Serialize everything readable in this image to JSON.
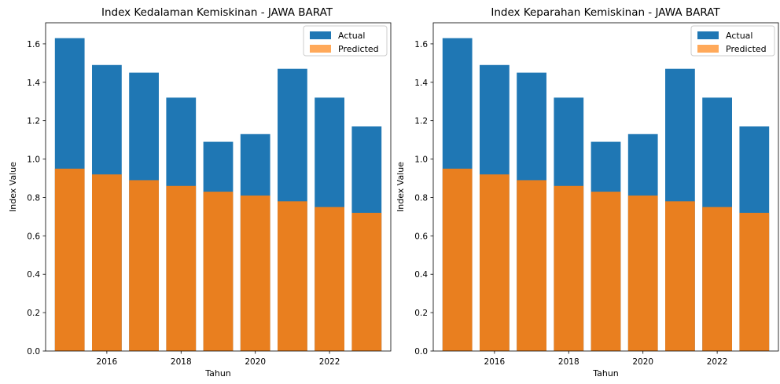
{
  "chart_data": [
    {
      "type": "bar",
      "title": "Index Kedalaman Kemiskinan - JAWA BARAT",
      "xlabel": "Tahun",
      "ylabel": "Index Value",
      "x": [
        2015,
        2016,
        2017,
        2018,
        2019,
        2020,
        2021,
        2022,
        2023
      ],
      "xticks": [
        2016,
        2018,
        2020,
        2022
      ],
      "yticks": [
        "0.0",
        "0.2",
        "0.4",
        "0.6",
        "0.8",
        "1.0",
        "1.2",
        "1.4",
        "1.6"
      ],
      "xlim": [
        2014.35,
        2023.65
      ],
      "ylim": [
        0,
        1.71
      ],
      "grid": false,
      "legend_position": "top-right",
      "series": [
        {
          "name": "Actual",
          "color": "#1f77b4",
          "values": [
            1.63,
            1.49,
            1.45,
            1.32,
            1.09,
            1.13,
            1.47,
            1.32,
            1.17
          ]
        },
        {
          "name": "Predicted",
          "color": "#ff7f0e",
          "legend_color": "#ffa95a",
          "values": [
            0.95,
            0.92,
            0.89,
            0.86,
            0.83,
            0.81,
            0.78,
            0.75,
            0.72
          ]
        }
      ]
    },
    {
      "type": "bar",
      "title": "Index Keparahan Kemiskinan - JAWA BARAT",
      "xlabel": "Tahun",
      "ylabel": "Index Value",
      "x": [
        2015,
        2016,
        2017,
        2018,
        2019,
        2020,
        2021,
        2022,
        2023
      ],
      "xticks": [
        2016,
        2018,
        2020,
        2022
      ],
      "yticks": [
        "0.0",
        "0.2",
        "0.4",
        "0.6",
        "0.8",
        "1.0",
        "1.2",
        "1.4",
        "1.6"
      ],
      "xlim": [
        2014.35,
        2023.65
      ],
      "ylim": [
        0,
        1.71
      ],
      "grid": false,
      "legend_position": "top-right",
      "series": [
        {
          "name": "Actual",
          "color": "#1f77b4",
          "values": [
            1.63,
            1.49,
            1.45,
            1.32,
            1.09,
            1.13,
            1.47,
            1.32,
            1.17
          ]
        },
        {
          "name": "Predicted",
          "color": "#ff7f0e",
          "legend_color": "#ffa95a",
          "values": [
            0.95,
            0.92,
            0.89,
            0.86,
            0.83,
            0.81,
            0.78,
            0.75,
            0.72
          ]
        }
      ]
    }
  ]
}
